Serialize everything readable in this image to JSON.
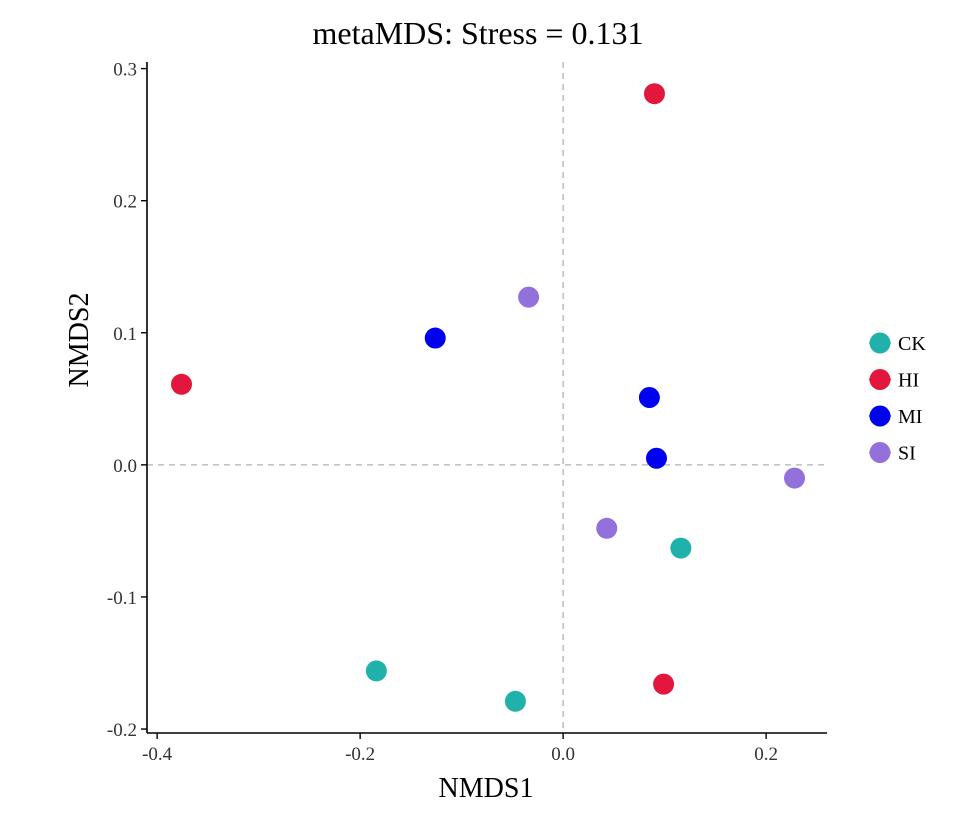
{
  "chart_data": {
    "type": "scatter",
    "title": "metaMDS: Stress = 0.131",
    "xlabel": "NMDS1",
    "ylabel": "NMDS2",
    "xlim": [
      -0.41,
      0.26
    ],
    "ylim": [
      -0.203,
      0.305
    ],
    "x_ticks": [
      -0.4,
      -0.2,
      0.0,
      0.2
    ],
    "x_tick_labels": [
      "-0.4",
      "-0.2",
      "0.0",
      "0.2"
    ],
    "y_ticks": [
      -0.2,
      -0.1,
      0.0,
      0.1,
      0.2,
      0.3
    ],
    "y_tick_labels": [
      "-0.2",
      "-0.1",
      "0.0",
      "0.1",
      "0.2",
      "0.3"
    ],
    "reference_lines": {
      "x": 0,
      "y": 0,
      "style": "dashed"
    },
    "grid": false,
    "legend_position": "right",
    "series": [
      {
        "name": "CK",
        "color": "#20b2aa",
        "points": [
          {
            "x": -0.184,
            "y": -0.156
          },
          {
            "x": -0.047,
            "y": -0.179
          },
          {
            "x": 0.116,
            "y": -0.063
          }
        ]
      },
      {
        "name": "HI",
        "color": "#e3173e",
        "points": [
          {
            "x": -0.376,
            "y": 0.061
          },
          {
            "x": 0.09,
            "y": 0.281
          },
          {
            "x": 0.099,
            "y": -0.166
          }
        ]
      },
      {
        "name": "MI",
        "color": "#0000f0",
        "points": [
          {
            "x": -0.126,
            "y": 0.096
          },
          {
            "x": 0.085,
            "y": 0.051
          },
          {
            "x": 0.092,
            "y": 0.005
          }
        ]
      },
      {
        "name": "SI",
        "color": "#9370db",
        "points": [
          {
            "x": -0.034,
            "y": 0.127
          },
          {
            "x": 0.043,
            "y": -0.048
          },
          {
            "x": 0.228,
            "y": -0.01
          }
        ]
      }
    ]
  }
}
